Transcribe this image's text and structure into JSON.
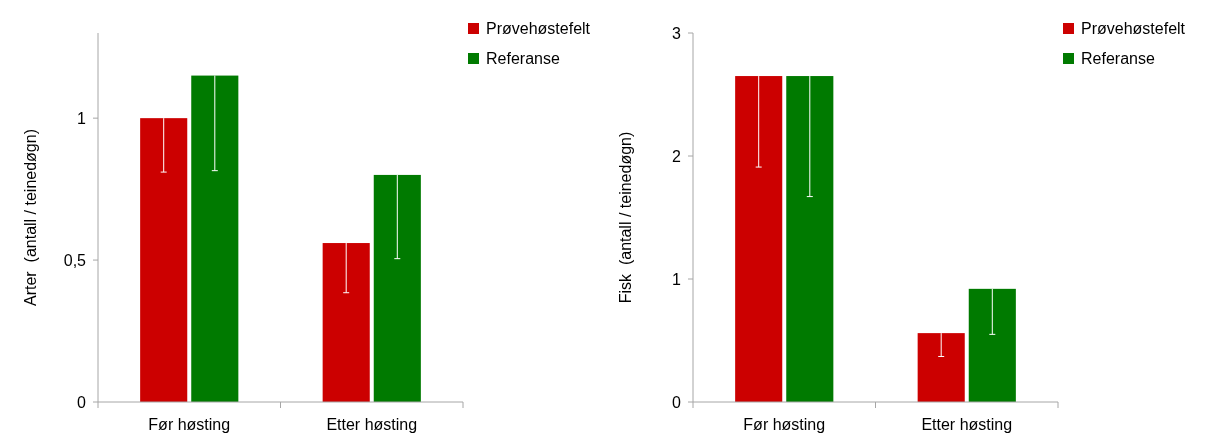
{
  "chart_data": [
    {
      "type": "bar",
      "ylabel": "Arter  (antall / teinedøgn)",
      "categories": [
        "Før høsting",
        "Etter høsting"
      ],
      "series": [
        {
          "name": "Prøvehøstefelt",
          "color": "#cc0000",
          "values": [
            1.0,
            0.56
          ],
          "errors": [
            [
              0.81,
              1.0
            ],
            [
              0.385,
              0.56
            ]
          ]
        },
        {
          "name": "Referanse",
          "color": "#007a00",
          "values": [
            1.15,
            0.8
          ],
          "errors": [
            [
              0.815,
              1.15
            ],
            [
              0.505,
              0.8
            ]
          ]
        }
      ],
      "ylim": [
        0,
        1.3
      ],
      "yticks": [
        0,
        {
          "value": 0.5,
          "label": "0,5"
        },
        1
      ],
      "grid": false,
      "legend": "top right"
    },
    {
      "type": "bar",
      "ylabel": "Fisk  (antall / teinedøgn)",
      "categories": [
        "Før høsting",
        "Etter høsting"
      ],
      "series": [
        {
          "name": "Prøvehøstefelt",
          "color": "#cc0000",
          "values": [
            2.65,
            0.56
          ],
          "errors": [
            [
              1.91,
              2.65
            ],
            [
              0.37,
              0.56
            ]
          ]
        },
        {
          "name": "Referanse",
          "color": "#007a00",
          "values": [
            2.65,
            0.92
          ],
          "errors": [
            [
              1.67,
              2.65
            ],
            [
              0.55,
              0.92
            ]
          ]
        }
      ],
      "ylim": [
        0,
        3
      ],
      "yticks": [
        0,
        1,
        2,
        3
      ],
      "grid": false,
      "legend": "top right"
    }
  ]
}
